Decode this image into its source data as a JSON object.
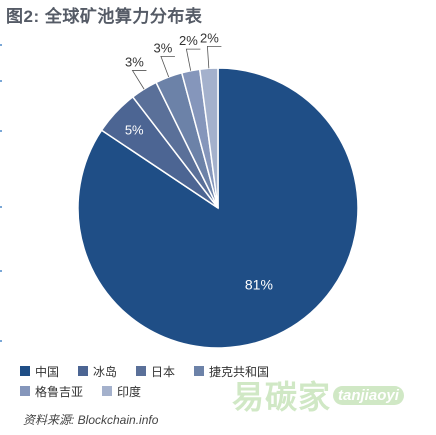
{
  "title": "图2: 全球矿池算力分布表",
  "chart_data": {
    "type": "pie",
    "categories": [
      "中国",
      "冰岛",
      "日本",
      "捷克共和国",
      "格鲁吉亚",
      "印度"
    ],
    "values": [
      81,
      5,
      3,
      3,
      2,
      2
    ],
    "labels": [
      "81%",
      "5%",
      "3%",
      "3%",
      "2%",
      "2%"
    ],
    "colors": [
      "#1f4e86",
      "#4c6593",
      "#5a7099",
      "#6c82a8",
      "#8596bb",
      "#a4b1cc"
    ],
    "legend_placement": "bottom-left"
  },
  "legend": {
    "row1": [
      "中国",
      "冰岛",
      "日本",
      "捷克共和国"
    ],
    "row2": [
      "格鲁吉亚",
      "印度"
    ]
  },
  "source": "资料来源: Blockchain.info",
  "watermark": {
    "cn": "易碳家",
    "en": "tanjiaoyi"
  }
}
